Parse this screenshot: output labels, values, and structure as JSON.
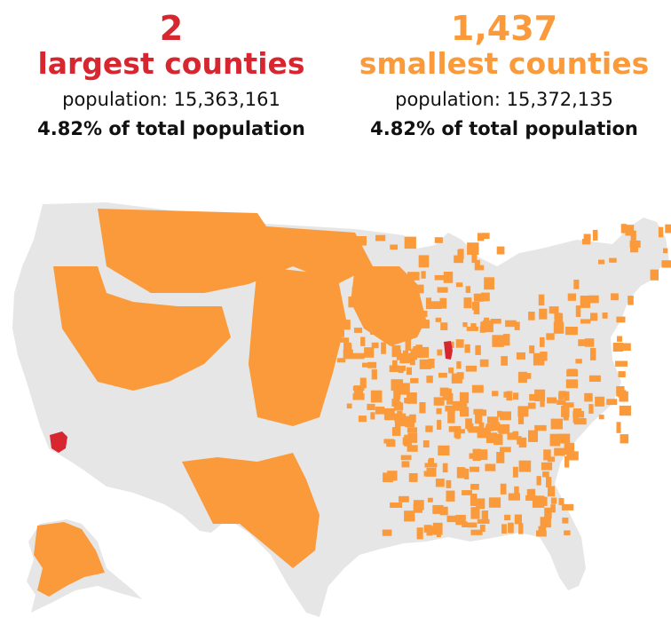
{
  "colors": {
    "largest": "#d7262f",
    "smallest": "#fa9a3b",
    "land": "#e6e6e6",
    "background": "#ffffff"
  },
  "largest": {
    "count": "2",
    "label": "largest counties",
    "population": "population: 15,363,161",
    "share": "4.82% of total population"
  },
  "smallest": {
    "count": "1,437",
    "label": "smallest counties",
    "population": "population: 15,372,135",
    "share": "4.82% of total population"
  }
}
